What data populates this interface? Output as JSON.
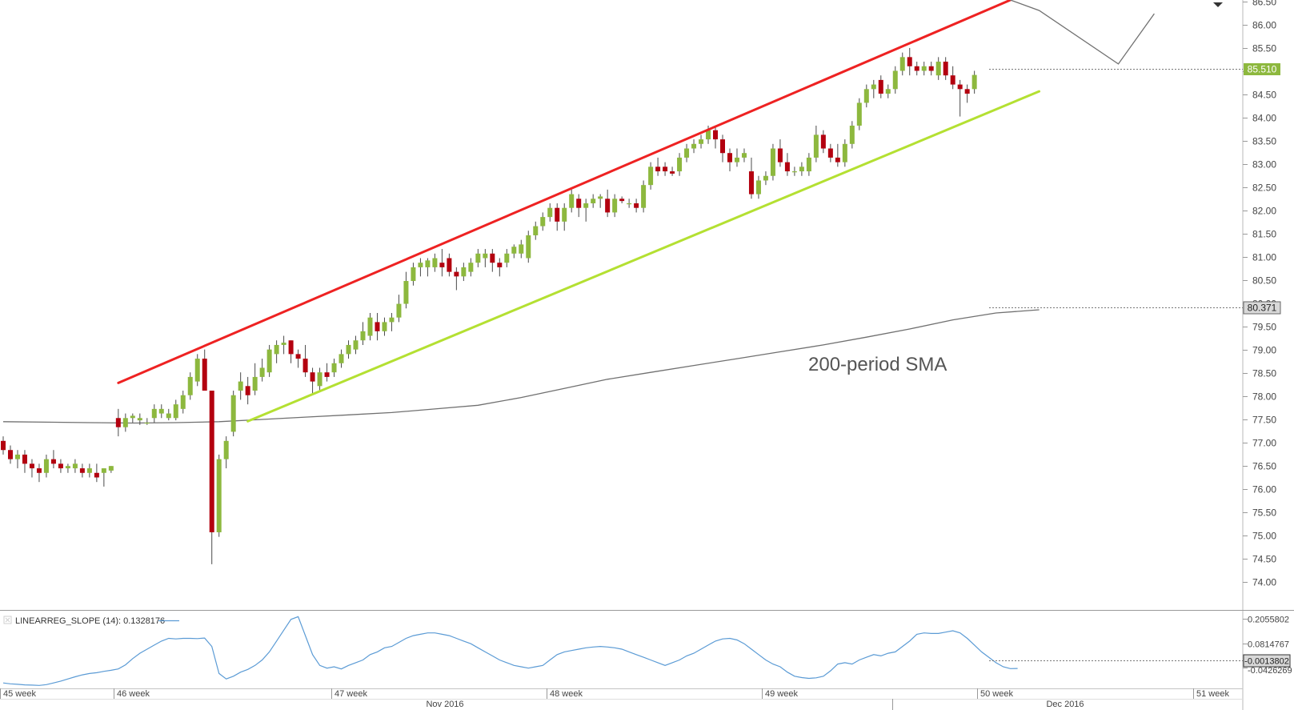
{
  "chart_data": [
    {
      "type": "candlestick",
      "title": "",
      "price_axis": {
        "ylim": [
          73.8,
          87.15
        ],
        "tick_labels": [
          "74.00",
          "74.50",
          "75.00",
          "75.50",
          "76.00",
          "76.50",
          "77.00",
          "77.50",
          "78.00",
          "78.50",
          "79.00",
          "79.50",
          "80.00",
          "80.50",
          "81.00",
          "81.50",
          "82.00",
          "82.50",
          "83.00",
          "83.50",
          "84.00",
          "84.50",
          "85.00",
          "85.50",
          "86.00",
          "86.50"
        ],
        "last_price_label": "85.510",
        "sma_price_label": "80.371",
        "current_price_color": "#8db83e",
        "sma_label_color": "#d8d8d8"
      },
      "time_axis": {
        "week_labels": [
          "45 week",
          "46 week",
          "47 week",
          "48 week",
          "49 week",
          "50 week",
          "51 week"
        ],
        "month_labels": [
          "Nov 2016",
          "Dec 2016"
        ]
      },
      "colors": {
        "bull": "#8db83e",
        "bear": "#b3000f",
        "upper_channel": "#ee2222",
        "lower_channel": "#b4e032",
        "sma": "#707070",
        "projection": "#707070",
        "oscillator": "#5b9bd5"
      },
      "candles": [
        [
          77.5,
          77.6,
          77.2,
          77.3
        ],
        [
          77.3,
          77.4,
          77.0,
          77.1
        ],
        [
          77.1,
          77.3,
          76.9,
          77.2
        ],
        [
          77.2,
          77.3,
          76.8,
          77.0
        ],
        [
          77.0,
          77.1,
          76.7,
          76.9
        ],
        [
          76.9,
          77.0,
          76.6,
          76.8
        ],
        [
          76.8,
          77.2,
          76.7,
          77.1
        ],
        [
          77.1,
          77.3,
          76.9,
          77.0
        ],
        [
          77.0,
          77.1,
          76.8,
          76.9
        ],
        [
          76.9,
          77.0,
          76.8,
          76.95
        ],
        [
          76.9,
          77.1,
          76.8,
          77.0
        ],
        [
          76.9,
          77.0,
          76.7,
          76.8
        ],
        [
          76.8,
          77.0,
          76.7,
          76.9
        ],
        [
          76.8,
          77.0,
          76.6,
          76.7
        ],
        [
          76.8,
          76.9,
          76.5,
          76.9
        ],
        [
          76.85,
          76.95,
          76.8,
          76.95
        ],
        [
          78.0,
          78.2,
          77.6,
          77.8
        ],
        [
          77.8,
          78.1,
          77.7,
          78.0
        ],
        [
          78.0,
          78.1,
          77.9,
          78.05
        ],
        [
          77.95,
          78.1,
          77.85,
          78.0
        ],
        [
          77.9,
          78.0,
          77.85,
          77.9
        ],
        [
          78.0,
          78.3,
          77.9,
          78.2
        ],
        [
          78.1,
          78.3,
          78.0,
          78.2
        ],
        [
          78.0,
          78.2,
          77.95,
          78.1
        ],
        [
          78.0,
          78.4,
          77.95,
          78.3
        ],
        [
          78.2,
          78.6,
          78.1,
          78.5
        ],
        [
          78.5,
          79.0,
          78.4,
          78.9
        ],
        [
          78.8,
          79.4,
          78.7,
          79.3
        ],
        [
          79.3,
          79.5,
          78.6,
          78.6
        ],
        [
          78.6,
          78.6,
          74.8,
          75.5
        ],
        [
          75.5,
          77.2,
          75.4,
          77.1
        ],
        [
          77.1,
          77.6,
          76.9,
          77.5
        ],
        [
          77.7,
          78.6,
          77.6,
          78.5
        ],
        [
          78.6,
          79.0,
          78.4,
          78.8
        ],
        [
          78.7,
          78.9,
          78.3,
          78.5
        ],
        [
          78.6,
          79.2,
          78.5,
          78.9
        ],
        [
          78.9,
          79.3,
          78.8,
          79.1
        ],
        [
          79.0,
          79.6,
          78.9,
          79.5
        ],
        [
          79.4,
          79.7,
          79.2,
          79.6
        ],
        [
          79.6,
          79.8,
          79.4,
          79.65
        ],
        [
          79.7,
          79.7,
          79.2,
          79.4
        ],
        [
          79.4,
          79.5,
          79.1,
          79.3
        ],
        [
          79.3,
          79.6,
          78.9,
          79.0
        ],
        [
          79.0,
          79.1,
          78.5,
          78.8
        ],
        [
          78.7,
          79.1,
          78.6,
          79.0
        ],
        [
          79.0,
          79.2,
          78.8,
          78.9
        ],
        [
          79.0,
          79.3,
          78.9,
          79.2
        ],
        [
          79.2,
          79.5,
          79.1,
          79.4
        ],
        [
          79.4,
          79.7,
          79.3,
          79.6
        ],
        [
          79.5,
          79.8,
          79.4,
          79.7
        ],
        [
          79.7,
          80.1,
          79.6,
          79.9
        ],
        [
          79.8,
          80.3,
          79.7,
          80.2
        ],
        [
          80.1,
          80.3,
          79.7,
          79.9
        ],
        [
          79.9,
          80.2,
          79.8,
          80.1
        ],
        [
          80.1,
          80.3,
          79.9,
          80.2
        ],
        [
          80.2,
          80.7,
          80.1,
          80.5
        ],
        [
          80.5,
          81.2,
          80.4,
          81.0
        ],
        [
          81.0,
          81.4,
          80.9,
          81.3
        ],
        [
          81.3,
          81.5,
          81.1,
          81.4
        ],
        [
          81.3,
          81.5,
          81.1,
          81.45
        ],
        [
          81.3,
          81.6,
          81.2,
          81.5
        ],
        [
          81.4,
          81.7,
          81.1,
          81.3
        ],
        [
          81.5,
          81.6,
          81.1,
          81.2
        ],
        [
          81.2,
          81.3,
          80.8,
          81.1
        ],
        [
          81.1,
          81.4,
          81.0,
          81.3
        ],
        [
          81.2,
          81.5,
          81.1,
          81.4
        ],
        [
          81.4,
          81.7,
          81.3,
          81.6
        ],
        [
          81.5,
          81.7,
          81.3,
          81.6
        ],
        [
          81.6,
          81.7,
          81.2,
          81.4
        ],
        [
          81.4,
          81.5,
          81.1,
          81.3
        ],
        [
          81.4,
          81.7,
          81.3,
          81.6
        ],
        [
          81.6,
          81.8,
          81.5,
          81.75
        ],
        [
          81.6,
          81.9,
          81.5,
          81.8
        ],
        [
          81.5,
          82.1,
          81.4,
          82.0
        ],
        [
          82.0,
          82.3,
          81.9,
          82.2
        ],
        [
          82.2,
          82.5,
          82.1,
          82.4
        ],
        [
          82.4,
          82.7,
          82.3,
          82.6
        ],
        [
          82.6,
          82.7,
          82.1,
          82.3
        ],
        [
          82.3,
          82.7,
          82.1,
          82.6
        ],
        [
          82.6,
          83.0,
          82.5,
          82.9
        ],
        [
          82.8,
          82.9,
          82.4,
          82.6
        ],
        [
          82.6,
          82.8,
          82.3,
          82.7
        ],
        [
          82.7,
          82.9,
          82.6,
          82.8
        ],
        [
          82.8,
          82.9,
          82.6,
          82.85
        ],
        [
          82.8,
          83.0,
          82.4,
          82.5
        ],
        [
          82.5,
          82.9,
          82.4,
          82.8
        ],
        [
          82.8,
          82.85,
          82.7,
          82.75
        ],
        [
          82.7,
          82.8,
          82.6,
          82.7
        ],
        [
          82.7,
          82.8,
          82.5,
          82.6
        ],
        [
          82.6,
          83.2,
          82.5,
          83.1
        ],
        [
          83.1,
          83.6,
          83.0,
          83.5
        ],
        [
          83.5,
          83.7,
          83.3,
          83.4
        ],
        [
          83.5,
          83.6,
          83.3,
          83.4
        ],
        [
          83.4,
          83.5,
          83.3,
          83.35
        ],
        [
          83.4,
          83.8,
          83.3,
          83.7
        ],
        [
          83.7,
          84.0,
          83.6,
          83.9
        ],
        [
          83.9,
          84.1,
          83.8,
          84.0
        ],
        [
          84.0,
          84.2,
          83.9,
          84.1
        ],
        [
          84.1,
          84.4,
          84.0,
          84.3
        ],
        [
          84.3,
          84.4,
          83.9,
          84.1
        ],
        [
          84.1,
          84.2,
          83.6,
          83.8
        ],
        [
          83.8,
          83.9,
          83.4,
          83.6
        ],
        [
          83.6,
          83.9,
          83.5,
          83.7
        ],
        [
          83.7,
          83.9,
          83.6,
          83.8
        ],
        [
          83.4,
          83.7,
          82.8,
          82.9
        ],
        [
          82.9,
          83.3,
          82.8,
          83.2
        ],
        [
          83.2,
          83.4,
          83.1,
          83.3
        ],
        [
          83.3,
          84.0,
          83.2,
          83.9
        ],
        [
          83.9,
          84.1,
          83.5,
          83.6
        ],
        [
          83.6,
          83.8,
          83.3,
          83.4
        ],
        [
          83.4,
          83.5,
          83.3,
          83.4
        ],
        [
          83.4,
          83.6,
          83.3,
          83.5
        ],
        [
          83.4,
          83.8,
          83.3,
          83.7
        ],
        [
          83.7,
          84.4,
          83.6,
          84.2
        ],
        [
          84.2,
          84.3,
          83.8,
          83.9
        ],
        [
          83.9,
          84.0,
          83.6,
          83.7
        ],
        [
          83.7,
          84.0,
          83.5,
          83.6
        ],
        [
          83.6,
          84.1,
          83.5,
          84.0
        ],
        [
          84.0,
          84.5,
          83.9,
          84.4
        ],
        [
          84.4,
          85.0,
          84.3,
          84.9
        ],
        [
          84.9,
          85.3,
          84.8,
          85.2
        ],
        [
          85.2,
          85.4,
          85.0,
          85.3
        ],
        [
          85.4,
          85.5,
          85.0,
          85.1
        ],
        [
          85.1,
          85.3,
          85.0,
          85.2
        ],
        [
          85.2,
          85.7,
          85.1,
          85.6
        ],
        [
          85.6,
          86.0,
          85.5,
          85.9
        ],
        [
          85.9,
          86.1,
          85.5,
          85.7
        ],
        [
          85.7,
          85.8,
          85.5,
          85.6
        ],
        [
          85.6,
          85.8,
          85.5,
          85.7
        ],
        [
          85.7,
          85.8,
          85.5,
          85.6
        ],
        [
          85.5,
          85.9,
          85.4,
          85.8
        ],
        [
          85.8,
          85.9,
          85.4,
          85.5
        ],
        [
          85.5,
          85.7,
          85.2,
          85.3
        ],
        [
          85.3,
          85.4,
          84.6,
          85.2
        ],
        [
          85.2,
          85.3,
          84.9,
          85.1
        ],
        [
          85.2,
          85.6,
          85.1,
          85.51
        ]
      ],
      "sma_label": "200-period SMA",
      "sma_values": [
        77.92,
        77.91,
        77.9,
        77.89,
        77.9,
        77.92,
        77.97,
        78.02,
        78.07,
        78.12,
        78.2,
        78.28,
        78.45,
        78.65,
        78.85,
        79.0,
        79.15,
        79.3,
        79.45,
        79.6,
        79.77,
        79.95,
        80.15,
        80.3,
        80.37
      ],
      "channel": {
        "upper": {
          "from": [
            16,
            78.77
          ],
          "to": [
            140,
            87.15
          ]
        },
        "lower": {
          "from": [
            34,
            77.93
          ],
          "to": [
            144,
            85.15
          ]
        }
      },
      "projection": [
        [
          140,
          87.15
        ],
        [
          144,
          86.92
        ],
        [
          155,
          85.75
        ],
        [
          160,
          86.85
        ]
      ]
    },
    {
      "type": "line",
      "indicator_label": "LINEARREG_SLOPE (14): 0.1328176",
      "tick_labels": [
        "0.2055802",
        "0.0814767",
        "-0.0426269"
      ],
      "current_value_label": "-0.0013802",
      "ylim": [
        -0.075,
        0.215
      ],
      "values": [
        -0.055,
        -0.058,
        -0.06,
        -0.062,
        -0.063,
        -0.064,
        -0.061,
        -0.055,
        -0.048,
        -0.04,
        -0.032,
        -0.025,
        -0.02,
        -0.017,
        -0.012,
        -0.008,
        -0.003,
        0.012,
        0.035,
        0.055,
        0.07,
        0.085,
        0.1,
        0.11,
        0.108,
        0.11,
        0.11,
        0.109,
        0.111,
        0.08,
        -0.02,
        -0.04,
        -0.03,
        -0.015,
        -0.005,
        0.01,
        0.03,
        0.06,
        0.1,
        0.14,
        0.18,
        0.19,
        0.12,
        0.05,
        0.01,
        0.0,
        0.005,
        -0.003,
        0.01,
        0.02,
        0.03,
        0.05,
        0.06,
        0.075,
        0.08,
        0.095,
        0.11,
        0.12,
        0.125,
        0.13,
        0.13,
        0.125,
        0.12,
        0.11,
        0.1,
        0.09,
        0.075,
        0.06,
        0.045,
        0.03,
        0.02,
        0.01,
        0.005,
        0.0,
        0.005,
        0.01,
        0.03,
        0.05,
        0.06,
        0.065,
        0.07,
        0.075,
        0.078,
        0.08,
        0.078,
        0.075,
        0.07,
        0.06,
        0.05,
        0.04,
        0.03,
        0.02,
        0.01,
        0.02,
        0.03,
        0.045,
        0.055,
        0.07,
        0.085,
        0.1,
        0.108,
        0.11,
        0.104,
        0.09,
        0.07,
        0.05,
        0.03,
        0.015,
        0.005,
        -0.015,
        -0.03,
        -0.035,
        -0.038,
        -0.036,
        -0.03,
        -0.01,
        0.015,
        0.02,
        0.015,
        0.03,
        0.04,
        0.05,
        0.045,
        0.055,
        0.06,
        0.08,
        0.1,
        0.125,
        0.13,
        0.128,
        0.128,
        0.133,
        0.138,
        0.13,
        0.11,
        0.085,
        0.06,
        0.04,
        0.02,
        0.005,
        -0.002,
        -0.0013802
      ]
    }
  ]
}
